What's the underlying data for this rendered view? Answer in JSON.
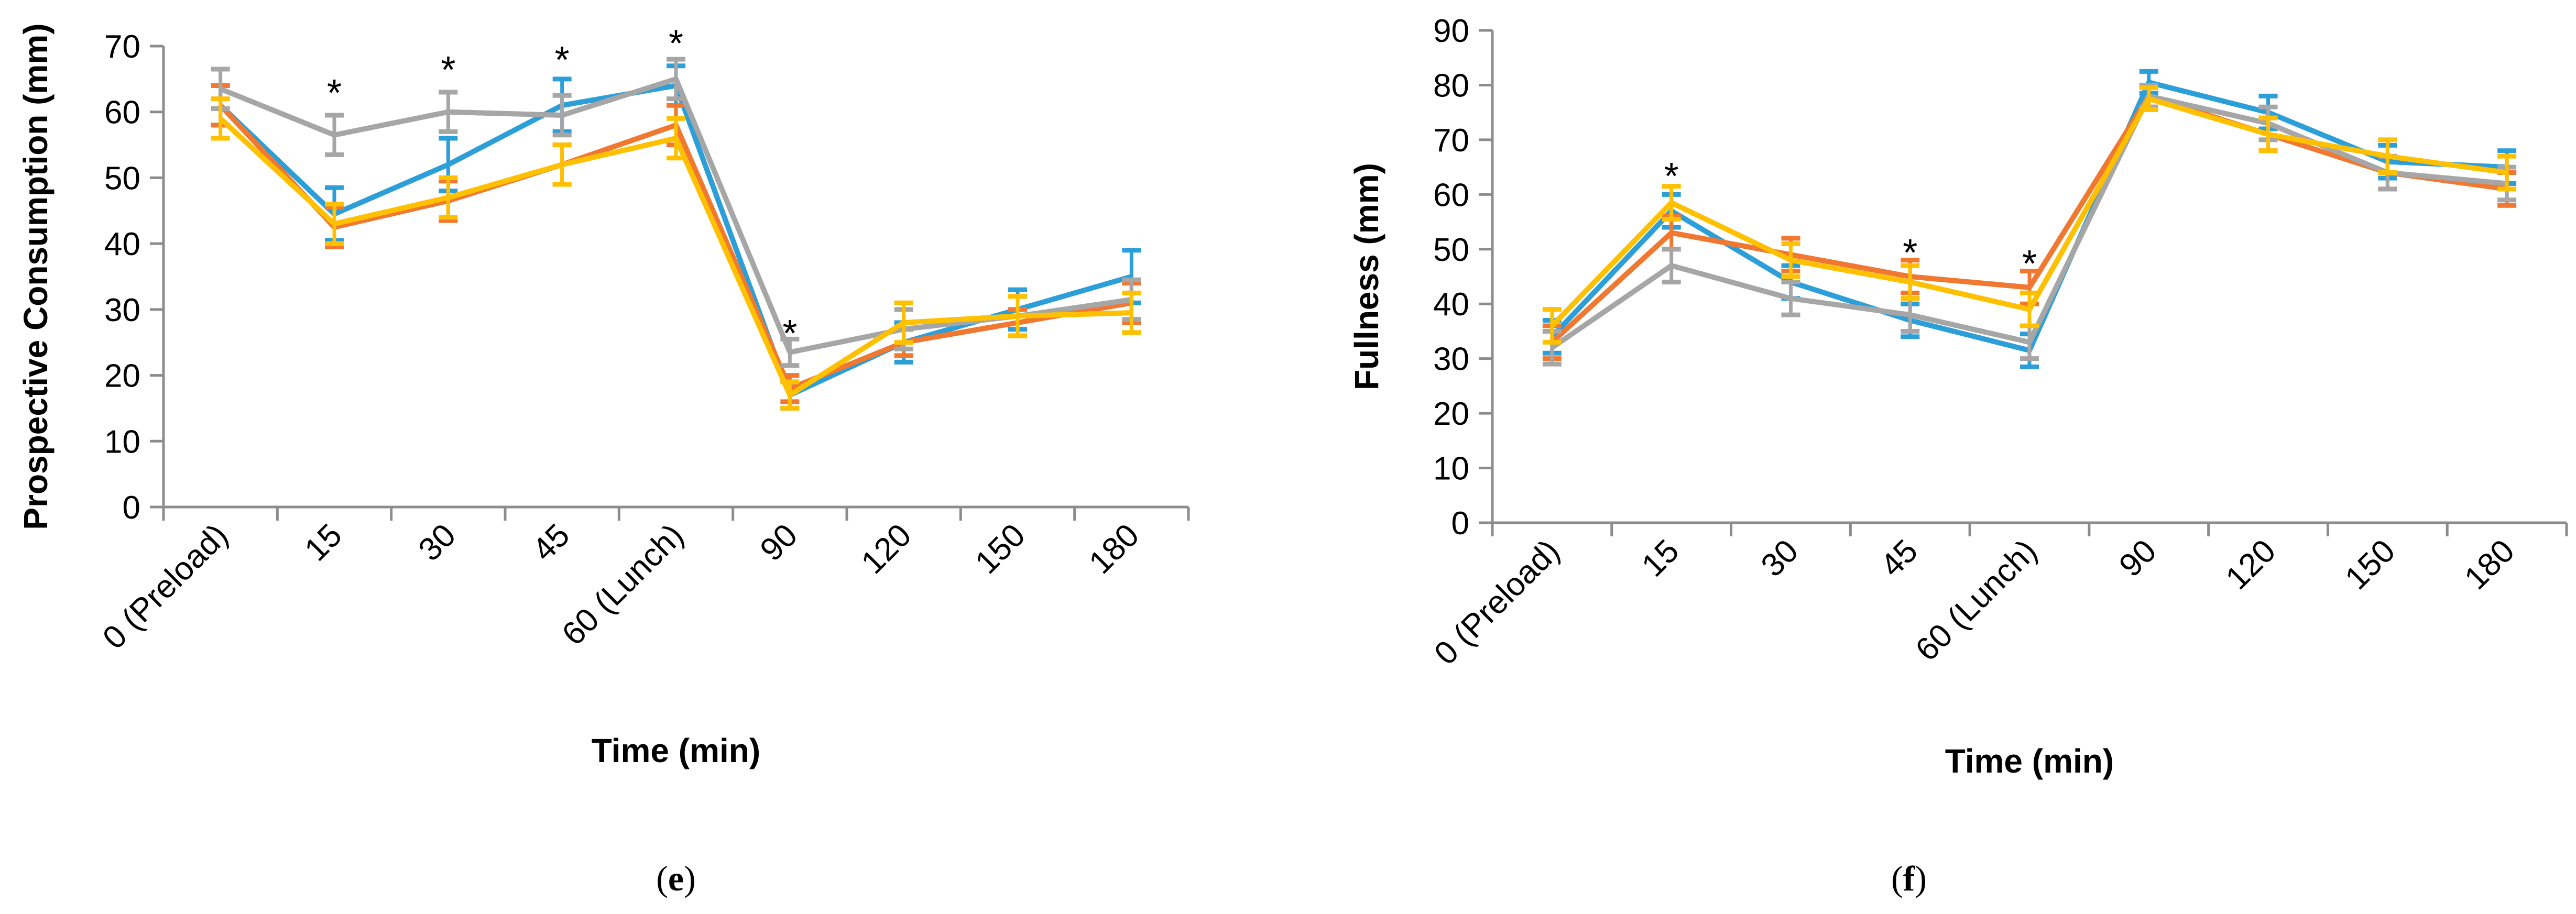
{
  "series_colors": {
    "blue": "#2d9fd8",
    "orange": "#f07830",
    "gray": "#a6a6a6",
    "yellow": "#ffc000"
  },
  "chart_data": [
    {
      "id": "e",
      "type": "line",
      "panel_label": {
        "open": "(",
        "letter": "e",
        "close": ")"
      },
      "title": "",
      "xlabel": "Time (min)",
      "ylabel": "Prospective Consumption (mm)",
      "ylim": [
        0,
        70
      ],
      "yticks": [
        0,
        10,
        20,
        30,
        40,
        50,
        60,
        70
      ],
      "categories": [
        "0 (Preload)",
        "15",
        "30",
        "45",
        "60 (Lunch)",
        "90",
        "120",
        "150",
        "180"
      ],
      "series": [
        {
          "name": "blue",
          "values": [
            61,
            44.5,
            52,
            61,
            64,
            17,
            25,
            30,
            35
          ],
          "errors": [
            3,
            4,
            4,
            4,
            3,
            2,
            3,
            3,
            4
          ]
        },
        {
          "name": "orange",
          "values": [
            61,
            42.5,
            46.5,
            52,
            58,
            18,
            25,
            28,
            31
          ],
          "errors": [
            3,
            3,
            3,
            3,
            3,
            2,
            2,
            2,
            3
          ]
        },
        {
          "name": "gray",
          "values": [
            63.5,
            56.5,
            60,
            59.5,
            65,
            23.5,
            27,
            29,
            31.5
          ],
          "errors": [
            3,
            3,
            3,
            3,
            3,
            2,
            3,
            3,
            3
          ]
        },
        {
          "name": "yellow",
          "values": [
            59,
            43,
            47,
            52,
            56,
            17,
            28,
            29,
            29.5
          ],
          "errors": [
            3,
            3,
            3,
            3,
            3,
            2,
            3,
            3,
            3
          ]
        }
      ],
      "annotations": [
        {
          "text": "*",
          "category": "15",
          "y": 63
        },
        {
          "text": "*",
          "category": "30",
          "y": 66.5
        },
        {
          "text": "*",
          "category": "45",
          "y": 68
        },
        {
          "text": "*",
          "category": "60 (Lunch)",
          "y": 70.5
        },
        {
          "text": "*",
          "category": "90",
          "y": 26.5
        }
      ]
    },
    {
      "id": "f",
      "type": "line",
      "panel_label": {
        "open": "(",
        "letter": "f",
        "close": ")"
      },
      "title": "",
      "xlabel": "Time (min)",
      "ylabel": "Fullness (mm)",
      "ylim": [
        0,
        90
      ],
      "yticks": [
        0,
        10,
        20,
        30,
        40,
        50,
        60,
        70,
        80,
        90
      ],
      "categories": [
        "0 (Preload)",
        "15",
        "30",
        "45",
        "60 (Lunch)",
        "90",
        "120",
        "150",
        "180"
      ],
      "series": [
        {
          "name": "blue",
          "values": [
            34,
            57,
            44,
            37,
            31.5,
            80.5,
            75,
            66,
            65
          ],
          "errors": [
            3,
            3,
            3,
            3,
            3,
            2,
            3,
            3,
            3
          ]
        },
        {
          "name": "orange",
          "values": [
            33,
            53,
            49,
            45,
            43,
            78,
            71,
            64,
            61
          ],
          "errors": [
            3,
            3,
            3,
            3,
            3,
            2,
            3,
            3,
            3
          ]
        },
        {
          "name": "gray",
          "values": [
            32,
            47,
            41,
            38,
            33,
            78,
            73,
            64,
            62
          ],
          "errors": [
            3,
            3,
            3,
            3,
            3,
            2,
            3,
            3,
            3
          ]
        },
        {
          "name": "yellow",
          "values": [
            36,
            58.5,
            48,
            44,
            39,
            77.5,
            71,
            67,
            64
          ],
          "errors": [
            3,
            3,
            3,
            3,
            3,
            2,
            3,
            3,
            3
          ]
        }
      ],
      "annotations": [
        {
          "text": "*",
          "category": "15",
          "y": 63.5
        },
        {
          "text": "*",
          "category": "45",
          "y": 49.5
        },
        {
          "text": "*",
          "category": "60 (Lunch)",
          "y": 47.5
        }
      ]
    }
  ]
}
